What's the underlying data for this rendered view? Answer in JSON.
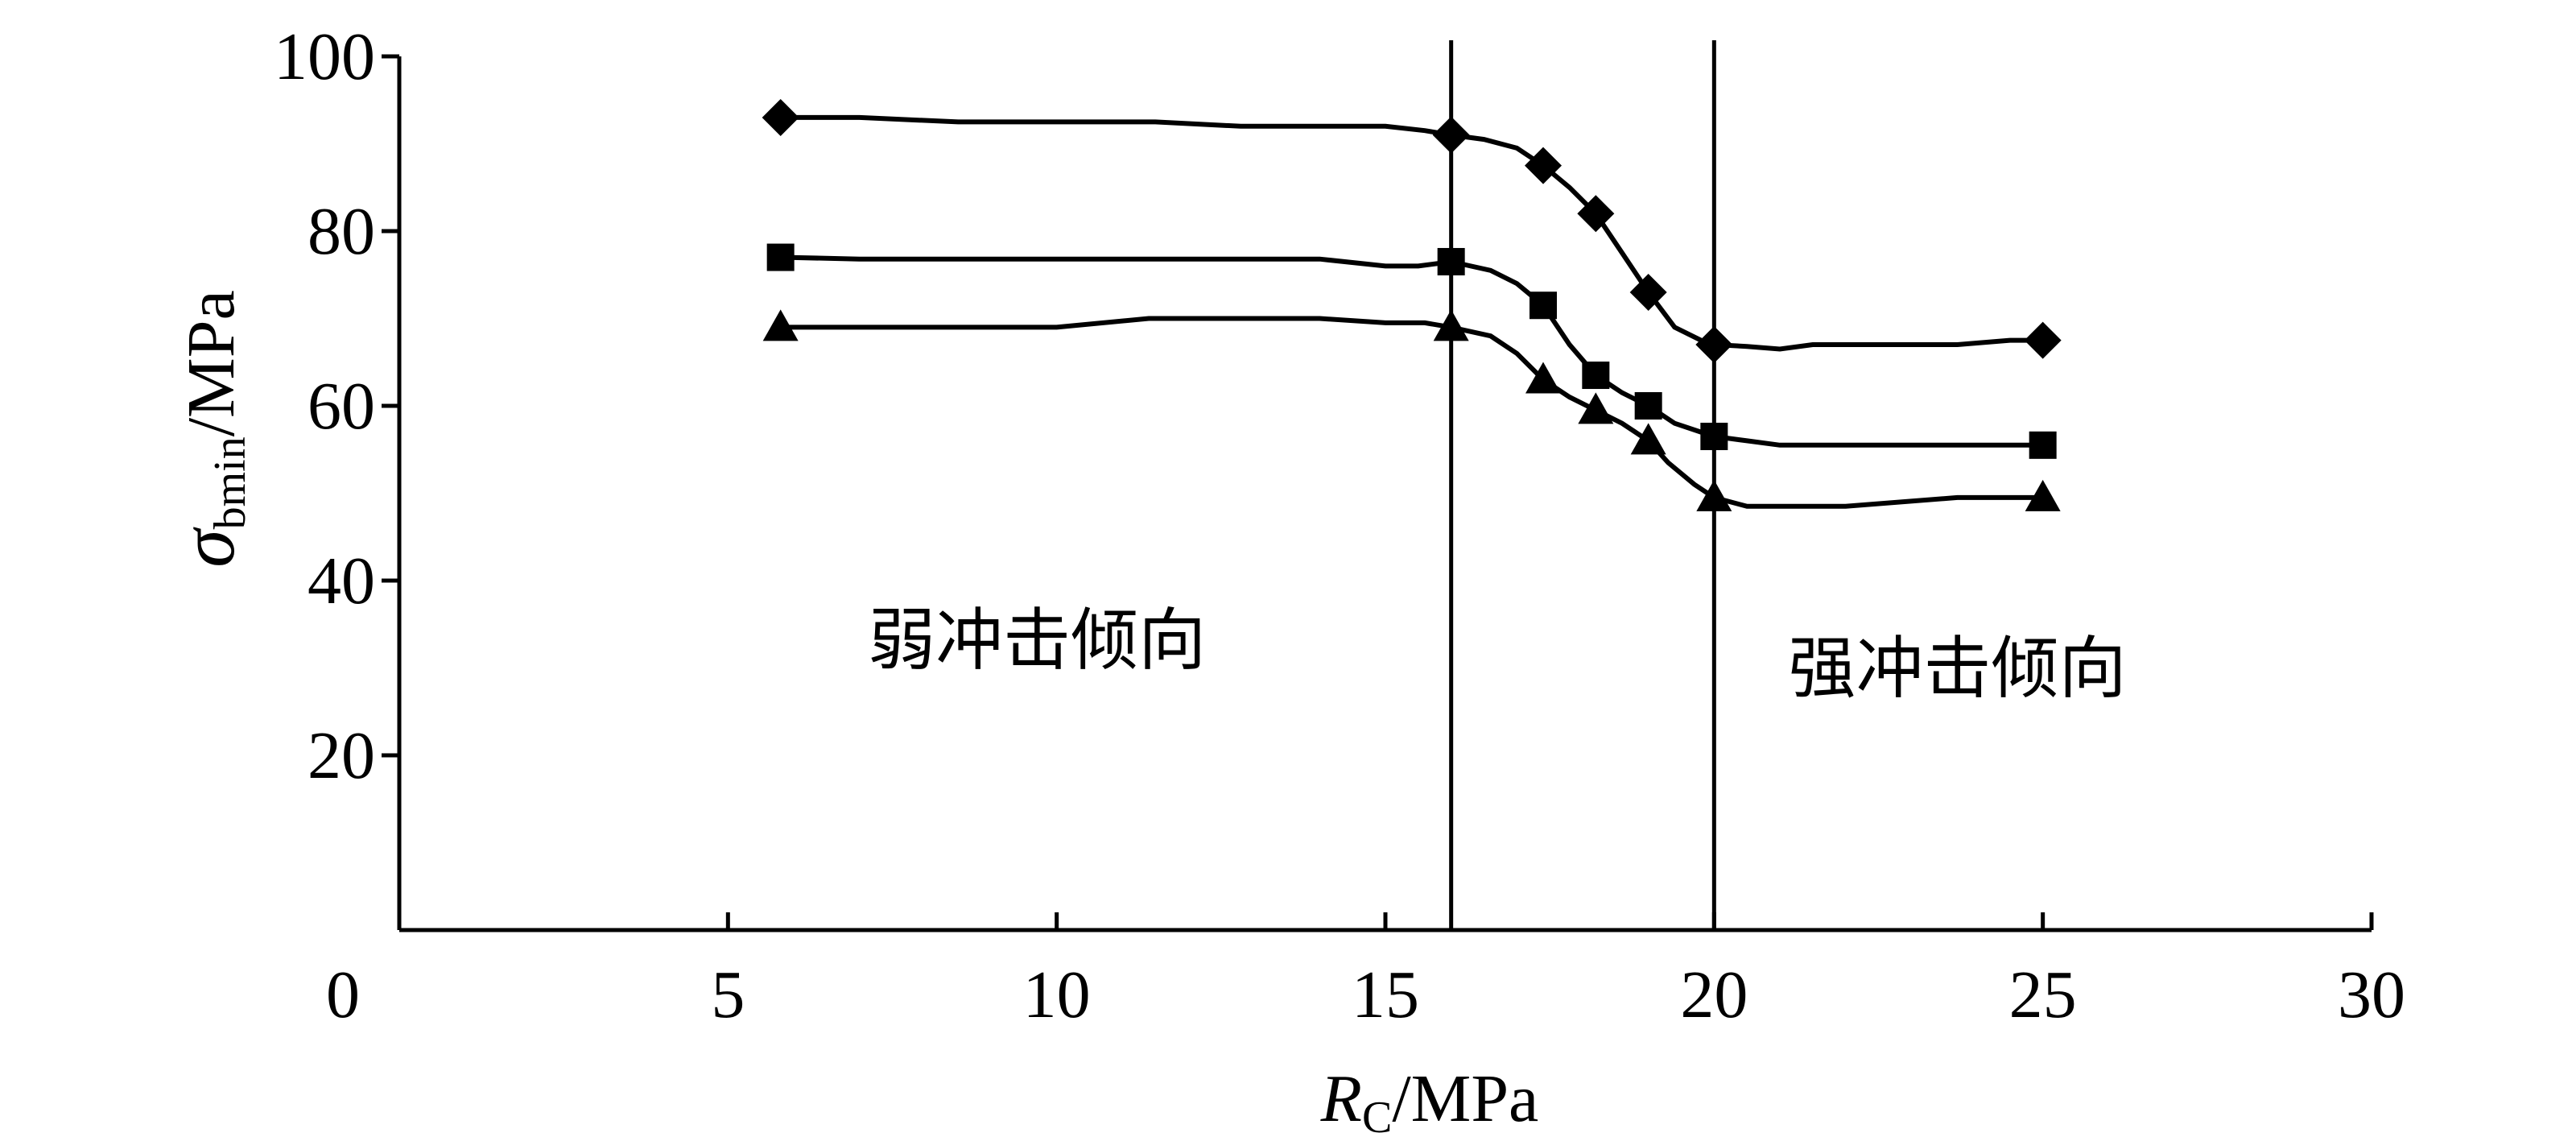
{
  "chart_data": {
    "type": "line",
    "x_axis": {
      "label_main": "R",
      "label_sub": "C",
      "label_unit": "/MPa",
      "range": [
        0,
        30
      ],
      "ticks": [
        0,
        5,
        10,
        15,
        20,
        25,
        30
      ]
    },
    "y_axis": {
      "label_main": "σ",
      "label_sub": "bmin",
      "label_unit": "/MPa",
      "range": [
        0,
        100
      ],
      "ticks": [
        20,
        40,
        60,
        80,
        100
      ]
    },
    "grid": false,
    "legend": "none",
    "vertical_lines": [
      16,
      20
    ],
    "regions": [
      {
        "text": "弱冲击倾向",
        "x": 9.7,
        "y": 30.5
      },
      {
        "text": "强冲击倾向",
        "x": 23.7,
        "y": 27.3
      }
    ],
    "series": [
      {
        "marker": "diamond",
        "points": [
          [
            5.8,
            93
          ],
          [
            16,
            91
          ],
          [
            17.4,
            87.5
          ],
          [
            18.2,
            82
          ],
          [
            19,
            73
          ],
          [
            20,
            67
          ],
          [
            25,
            67.5
          ]
        ],
        "curve": [
          [
            5.8,
            93
          ],
          [
            7,
            93
          ],
          [
            8.5,
            92.5
          ],
          [
            10,
            92.5
          ],
          [
            11.5,
            92.5
          ],
          [
            12.8,
            92
          ],
          [
            14,
            92
          ],
          [
            15,
            92
          ],
          [
            15.6,
            91.5
          ],
          [
            16,
            91
          ],
          [
            16.5,
            90.5
          ],
          [
            17,
            89.5
          ],
          [
            17.4,
            87.5
          ],
          [
            17.8,
            85
          ],
          [
            18.2,
            82
          ],
          [
            18.6,
            77.5
          ],
          [
            19,
            73
          ],
          [
            19.4,
            69
          ],
          [
            19.8,
            67.5
          ],
          [
            20,
            67
          ],
          [
            20.5,
            66.8
          ],
          [
            21,
            66.5
          ],
          [
            21.5,
            67
          ],
          [
            22.5,
            67
          ],
          [
            23.7,
            67
          ],
          [
            24.5,
            67.5
          ],
          [
            25,
            67.5
          ]
        ]
      },
      {
        "marker": "square",
        "points": [
          [
            5.8,
            77
          ],
          [
            16,
            76.5
          ],
          [
            17.4,
            71.5
          ],
          [
            18.2,
            63.5
          ],
          [
            19,
            60
          ],
          [
            20,
            56.5
          ],
          [
            25,
            55.5
          ]
        ],
        "curve": [
          [
            5.8,
            77
          ],
          [
            7,
            76.8
          ],
          [
            10,
            76.8
          ],
          [
            12.8,
            76.8
          ],
          [
            14,
            76.8
          ],
          [
            15,
            76
          ],
          [
            15.5,
            76
          ],
          [
            16,
            76.5
          ],
          [
            16.6,
            75.5
          ],
          [
            17,
            74
          ],
          [
            17.4,
            71.5
          ],
          [
            17.8,
            67
          ],
          [
            18.2,
            63.5
          ],
          [
            18.6,
            61.5
          ],
          [
            19,
            60
          ],
          [
            19.4,
            58
          ],
          [
            19.8,
            57
          ],
          [
            20,
            56.5
          ],
          [
            20.5,
            56
          ],
          [
            21,
            55.5
          ],
          [
            22,
            55.5
          ],
          [
            23,
            55.5
          ],
          [
            24,
            55.5
          ],
          [
            25,
            55.5
          ]
        ]
      },
      {
        "marker": "triangle",
        "points": [
          [
            5.8,
            69
          ],
          [
            16,
            69
          ],
          [
            17.4,
            63
          ],
          [
            18.2,
            59.5
          ],
          [
            19,
            56
          ],
          [
            20,
            49.5
          ],
          [
            25,
            49.5
          ]
        ],
        "curve": [
          [
            5.8,
            69
          ],
          [
            7,
            69
          ],
          [
            10,
            69
          ],
          [
            11.4,
            70
          ],
          [
            13,
            70
          ],
          [
            14,
            70
          ],
          [
            15,
            69.5
          ],
          [
            15.6,
            69.5
          ],
          [
            16,
            69
          ],
          [
            16.6,
            68
          ],
          [
            17,
            66
          ],
          [
            17.4,
            63
          ],
          [
            17.8,
            61
          ],
          [
            18.2,
            59.5
          ],
          [
            18.6,
            58
          ],
          [
            19,
            56
          ],
          [
            19.3,
            53.5
          ],
          [
            19.7,
            51
          ],
          [
            20,
            49.5
          ],
          [
            20.5,
            48.5
          ],
          [
            21,
            48.5
          ],
          [
            22,
            48.5
          ],
          [
            23.7,
            49.5
          ],
          [
            25,
            49.5
          ]
        ]
      }
    ]
  }
}
